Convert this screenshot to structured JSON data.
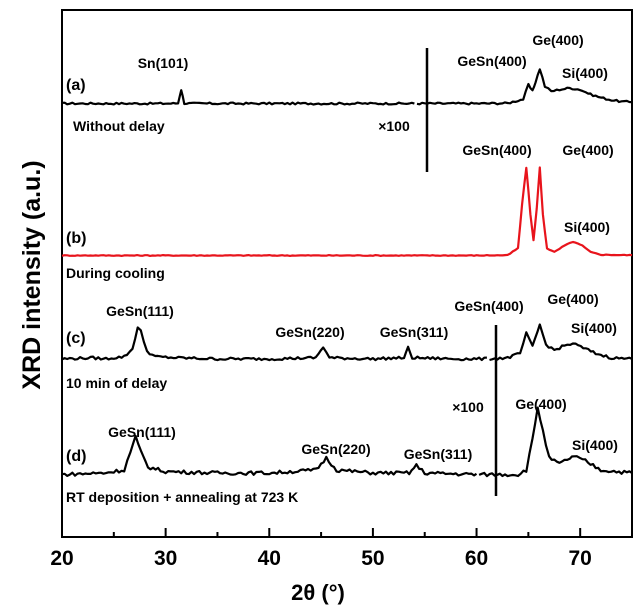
{
  "chart_data": {
    "type": "line",
    "xlabel": "2θ (°)",
    "ylabel": "XRD intensity (a.u.)",
    "xlim": [
      20,
      75
    ],
    "x_ticks": [
      "20",
      "30",
      "40",
      "50",
      "60",
      "70"
    ],
    "scale_label": "×100",
    "series": [
      {
        "id": "a",
        "tag": "(a)",
        "caption": "Without delay",
        "color": "#000000",
        "scaled_segment_end": 54.0,
        "x": [
          20,
          30.5,
          31.2,
          31.5,
          31.8,
          32.5,
          54,
          60,
          63,
          64.5,
          65,
          65.4,
          65.7,
          66.1,
          66.6,
          67.2,
          68,
          69,
          70,
          71,
          72,
          73,
          74,
          75
        ],
        "y": [
          0.03,
          0.03,
          0.05,
          0.9,
          0.05,
          0.03,
          0.03,
          0.03,
          0.05,
          0.3,
          1.2,
          0.8,
          1.4,
          2.2,
          1.1,
          0.8,
          0.9,
          1.0,
          0.9,
          0.6,
          0.4,
          0.25,
          0.15,
          0.12
        ],
        "peak_labels": [
          {
            "text": "Sn(101)",
            "x": 31.5
          },
          {
            "text": "GeSn(400)",
            "x": 64.9
          },
          {
            "text": "Ge(400)",
            "x": 66.1
          },
          {
            "text": "Si(400)",
            "x": 69.3
          }
        ]
      },
      {
        "id": "b",
        "tag": "(b)",
        "caption": "During cooling",
        "color": "#e8141c",
        "x": [
          20,
          60,
          63,
          64.0,
          64.4,
          64.8,
          65.2,
          65.5,
          65.8,
          66.1,
          66.4,
          66.8,
          67.5,
          68.5,
          69.3,
          70.2,
          71,
          72,
          75
        ],
        "y": [
          0.02,
          0.02,
          0.03,
          0.3,
          2.0,
          3.4,
          1.6,
          0.6,
          1.8,
          3.4,
          1.6,
          0.3,
          0.15,
          0.4,
          0.55,
          0.4,
          0.15,
          0.05,
          0.03
        ],
        "peak_labels": [
          {
            "text": "GeSn(400)",
            "x": 64.8
          },
          {
            "text": "Ge(400)",
            "x": 66.1
          },
          {
            "text": "Si(400)",
            "x": 69.3
          }
        ]
      },
      {
        "id": "c",
        "tag": "(c)",
        "caption": "10 min of delay",
        "color": "#000000",
        "scaled_segment_end": 61.0,
        "x": [
          20,
          23,
          24,
          26,
          26.8,
          27.3,
          27.6,
          28.2,
          29,
          31,
          35,
          40,
          44.5,
          45.2,
          45.8,
          50,
          53,
          53.4,
          53.8,
          58,
          61,
          63,
          64.2,
          64.8,
          65.4,
          66.1,
          66.7,
          67.5,
          68.5,
          69.3,
          70.3,
          71.5,
          73,
          75
        ],
        "y": [
          0.05,
          0.1,
          0.05,
          0.15,
          0.5,
          1.5,
          1.3,
          0.4,
          0.15,
          0.1,
          0.05,
          0.05,
          0.1,
          0.6,
          0.1,
          0.05,
          0.1,
          0.55,
          0.1,
          0.05,
          0.05,
          0.1,
          0.3,
          1.2,
          0.6,
          1.6,
          0.7,
          0.45,
          0.65,
          0.75,
          0.55,
          0.3,
          0.1,
          0.05
        ],
        "peak_labels": [
          {
            "text": "GeSn(111)",
            "x": 27.5
          },
          {
            "text": "GeSn(220)",
            "x": 45.3
          },
          {
            "text": "GeSn(311)",
            "x": 53.4
          },
          {
            "text": "GeSn(400)",
            "x": 64.9
          },
          {
            "text": "Ge(400)",
            "x": 66.1
          },
          {
            "text": "Si(400)",
            "x": 69.3
          }
        ]
      },
      {
        "id": "d",
        "tag": "(d)",
        "caption": "RT deposition + annealing at 723 K",
        "color": "#000000",
        "scaled_segment_end": 60.0,
        "x": [
          20,
          24,
          26,
          26.6,
          27.1,
          27.6,
          28.3,
          30,
          35,
          40,
          44.5,
          45.5,
          46.5,
          50,
          53.5,
          54.2,
          55,
          60,
          62,
          64,
          64.8,
          65.4,
          65.9,
          66.4,
          67,
          68,
          69,
          69.4,
          70.5,
          72,
          75
        ],
        "y": [
          0.05,
          0.1,
          0.2,
          0.8,
          1.3,
          0.8,
          0.3,
          0.15,
          0.1,
          0.1,
          0.2,
          0.6,
          0.2,
          0.1,
          0.1,
          0.35,
          0.1,
          0.05,
          0.05,
          0.05,
          0.2,
          1.2,
          2.3,
          1.5,
          0.6,
          0.4,
          0.6,
          0.65,
          0.5,
          0.2,
          0.1
        ],
        "peak_labels": [
          {
            "text": "GeSn(111)",
            "x": 27.1
          },
          {
            "text": "GeSn(220)",
            "x": 45.5
          },
          {
            "text": "GeSn(311)",
            "x": 54.2
          },
          {
            "text": "Ge(400)",
            "x": 65.9
          },
          {
            "text": "Si(400)",
            "x": 69.3
          }
        ]
      }
    ]
  }
}
